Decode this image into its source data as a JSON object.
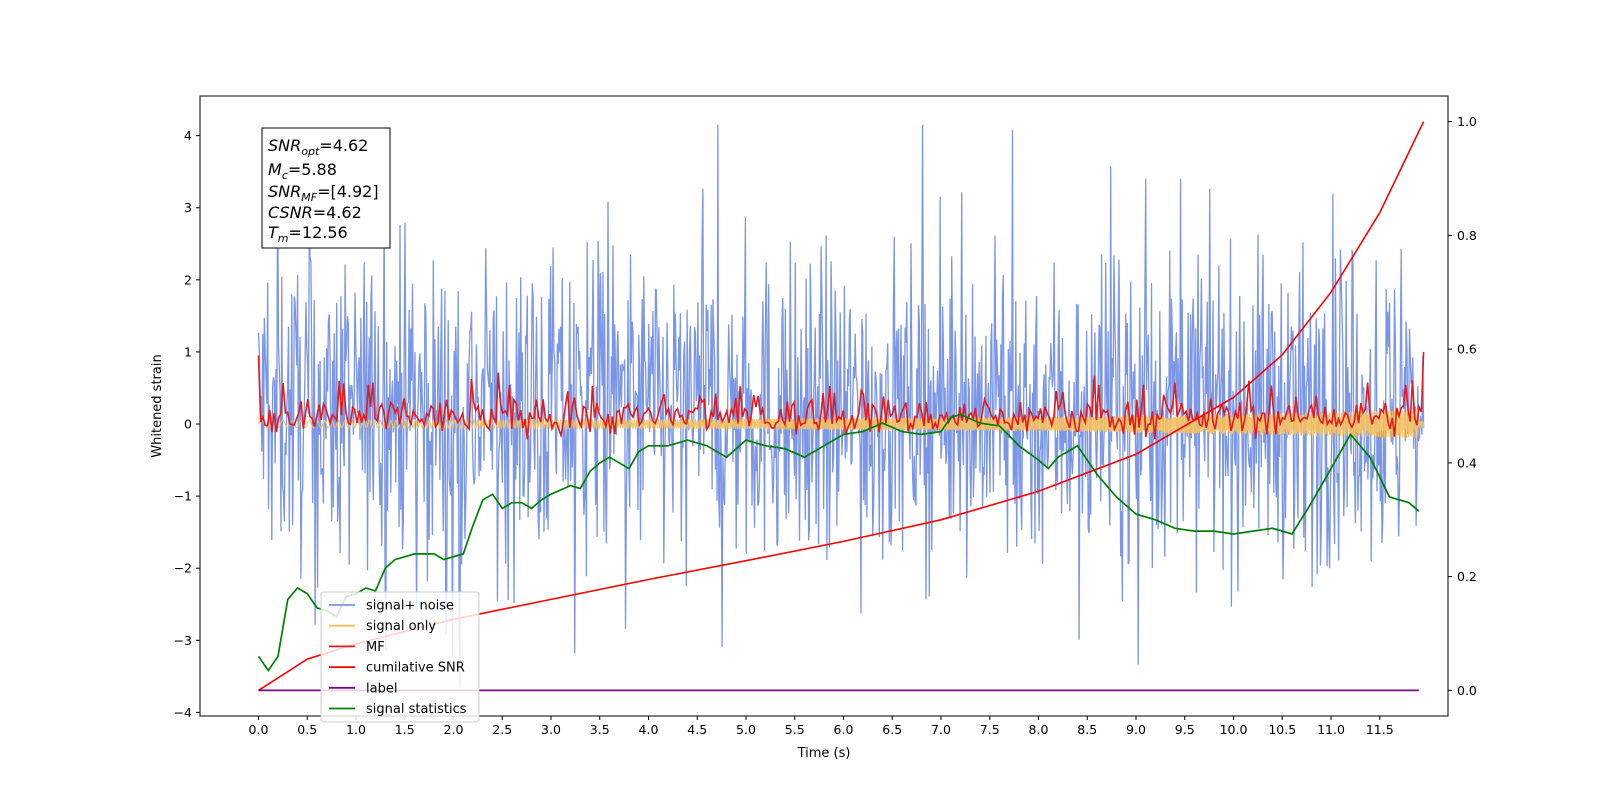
{
  "chart_data": {
    "type": "line",
    "xlabel": "Time (s)",
    "ylabel": "Whitened strain",
    "xlim": [
      -0.6,
      12.2
    ],
    "ylim": [
      -4.05,
      4.55
    ],
    "y2lim": [
      -0.045,
      1.045
    ],
    "x_ticks": [
      "0.0",
      "0.5",
      "1.0",
      "1.5",
      "2.0",
      "2.5",
      "3.0",
      "3.5",
      "4.0",
      "4.5",
      "5.0",
      "5.5",
      "6.0",
      "6.5",
      "7.0",
      "7.5",
      "8.0",
      "8.5",
      "9.0",
      "9.5",
      "10.0",
      "10.5",
      "11.0",
      "11.5"
    ],
    "y_ticks": [
      -4,
      -3,
      -2,
      -1,
      0,
      1,
      2,
      3,
      4
    ],
    "y2_ticks": [
      "0.0",
      "0.2",
      "0.4",
      "0.6",
      "0.8",
      "1.0"
    ],
    "grid": false,
    "legend_position": "lower-left",
    "info_box": {
      "snr_opt": "=4.62",
      "mc": "=5.88",
      "snr_mf": "=[4.92]",
      "csnr": "=4.62",
      "tm": "=12.56"
    },
    "series": [
      {
        "name": "signal+ noise",
        "color": "#7b96e6",
        "axis": "left",
        "representation": "noisy strain, approx. range -3.6 to 4.2, mostly between -2.2 and 2.8"
      },
      {
        "name": "signal only",
        "color": "#f5c060",
        "axis": "left",
        "x": [
          0,
          4,
          8,
          10,
          11.9
        ],
        "amplitude": [
          0.05,
          0.06,
          0.1,
          0.14,
          0.2
        ]
      },
      {
        "name": "MF",
        "color": "#e41a1c",
        "axis": "left",
        "x": [
          0,
          0.04,
          11.9,
          11.95
        ],
        "y": [
          0.95,
          0.1,
          0.1,
          1.0
        ],
        "spread": 0.22
      },
      {
        "name": "cumilative SNR",
        "color": "#ff0000",
        "axis": "right",
        "x": [
          0,
          0.5,
          1,
          2,
          3,
          4,
          5,
          6,
          7,
          8,
          9,
          10,
          10.5,
          11,
          11.5,
          11.95
        ],
        "y": [
          0.0,
          0.055,
          0.082,
          0.125,
          0.16,
          0.195,
          0.228,
          0.262,
          0.3,
          0.35,
          0.415,
          0.515,
          0.59,
          0.7,
          0.84,
          1.0
        ]
      },
      {
        "name": "label",
        "color": "#800080",
        "axis": "right",
        "x": [
          0,
          11.9
        ],
        "y": [
          0.0,
          0.0
        ]
      },
      {
        "name": "signal statistics",
        "color": "#008000",
        "axis": "right",
        "x": [
          0,
          0.1,
          0.2,
          0.3,
          0.4,
          0.5,
          0.6,
          0.7,
          0.8,
          0.9,
          1.0,
          1.1,
          1.2,
          1.3,
          1.4,
          1.6,
          1.8,
          1.9,
          2.0,
          2.1,
          2.2,
          2.3,
          2.4,
          2.5,
          2.6,
          2.7,
          2.8,
          2.9,
          3.0,
          3.2,
          3.3,
          3.4,
          3.5,
          3.6,
          3.8,
          3.9,
          4.0,
          4.2,
          4.4,
          4.6,
          4.8,
          5.0,
          5.2,
          5.4,
          5.6,
          5.8,
          6.0,
          6.2,
          6.4,
          6.6,
          6.8,
          7.0,
          7.1,
          7.2,
          7.4,
          7.6,
          7.8,
          8.0,
          8.1,
          8.2,
          8.3,
          8.4,
          8.6,
          8.8,
          9.0,
          9.2,
          9.4,
          9.6,
          9.8,
          10.0,
          10.2,
          10.4,
          10.6,
          10.8,
          11.0,
          11.2,
          11.4,
          11.6,
          11.8,
          11.9
        ],
        "y": [
          0.06,
          0.035,
          0.06,
          0.16,
          0.18,
          0.17,
          0.145,
          0.14,
          0.13,
          0.165,
          0.17,
          0.18,
          0.175,
          0.215,
          0.23,
          0.24,
          0.24,
          0.23,
          0.235,
          0.24,
          0.29,
          0.335,
          0.345,
          0.32,
          0.33,
          0.33,
          0.32,
          0.335,
          0.345,
          0.36,
          0.355,
          0.385,
          0.4,
          0.41,
          0.39,
          0.42,
          0.43,
          0.43,
          0.44,
          0.43,
          0.41,
          0.44,
          0.43,
          0.425,
          0.41,
          0.43,
          0.45,
          0.455,
          0.47,
          0.455,
          0.45,
          0.455,
          0.48,
          0.485,
          0.47,
          0.465,
          0.43,
          0.405,
          0.39,
          0.41,
          0.42,
          0.43,
          0.38,
          0.34,
          0.31,
          0.3,
          0.285,
          0.28,
          0.28,
          0.275,
          0.28,
          0.285,
          0.275,
          0.33,
          0.39,
          0.45,
          0.41,
          0.34,
          0.33,
          0.315
        ]
      }
    ]
  }
}
